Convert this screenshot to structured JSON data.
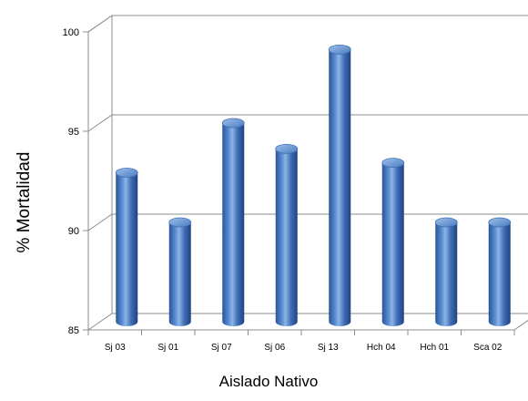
{
  "chart_data": {
    "type": "bar",
    "style": "3d-cylinder",
    "categories": [
      "Sj 03",
      "Sj 01",
      "Sj 07",
      "Sj 06",
      "Sj 13",
      "Hch 04",
      "Hch 01",
      "Sca 02"
    ],
    "values": [
      92.5,
      90.0,
      95.0,
      93.7,
      98.7,
      93.0,
      90.0,
      90.0
    ],
    "xlabel": "Aislado Nativo",
    "ylabel": "% Mortalidad",
    "ylim": [
      85,
      100
    ],
    "yticks": [
      85,
      90,
      95,
      100
    ],
    "grid": true,
    "legend": "none",
    "bar_color": "#4a7cc0",
    "bar_highlight": "#8fb3e6",
    "bar_shadow": "#1f4380"
  }
}
